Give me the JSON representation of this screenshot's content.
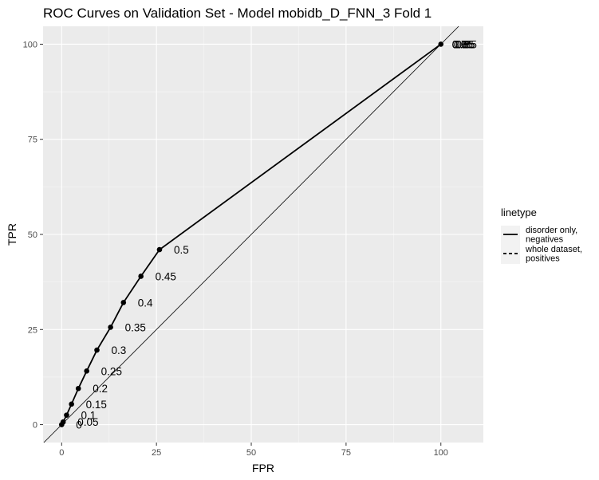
{
  "chart_data": {
    "type": "line",
    "title": "ROC Curves on Validation Set - Model mobidb_D_FNN_3 Fold 1",
    "xlabel": "FPR",
    "ylabel": "TPR",
    "xlim": [
      -4.9,
      111.2
    ],
    "ylim": [
      -4.7,
      104.7
    ],
    "x_ticks": [
      0,
      25,
      50,
      75,
      100
    ],
    "y_ticks": [
      0,
      25,
      50,
      75,
      100
    ],
    "grid": true,
    "legend": {
      "title": "linetype",
      "position": "right",
      "entries": [
        {
          "label_lines": [
            "disorder only,",
            "negatives"
          ],
          "linestyle": "solid"
        },
        {
          "label_lines": [
            "whole dataset,",
            "positives"
          ],
          "linestyle": "dashed"
        }
      ]
    },
    "reference_line": {
      "slope": 1,
      "intercept": 0
    },
    "series": [
      {
        "linestyle": "solid",
        "points": [
          {
            "x": 100,
            "y": 100,
            "label": "0.95"
          },
          {
            "x": 25.8,
            "y": 46,
            "label": "0.5"
          },
          {
            "x": 20.9,
            "y": 39,
            "label": "0.45"
          },
          {
            "x": 16.3,
            "y": 32.1,
            "label": "0.4"
          },
          {
            "x": 12.9,
            "y": 25.6,
            "label": "0.35"
          },
          {
            "x": 9.3,
            "y": 19.6,
            "label": "0.3"
          },
          {
            "x": 6.6,
            "y": 14.1,
            "label": "0.25"
          },
          {
            "x": 4.4,
            "y": 9.5,
            "label": "0.2"
          },
          {
            "x": 2.6,
            "y": 5.4,
            "label": "0.15"
          },
          {
            "x": 1.3,
            "y": 2.5,
            "label": "0.1"
          },
          {
            "x": 0.4,
            "y": 0.7,
            "label": "0.05"
          },
          {
            "x": 0,
            "y": 0,
            "label": "0"
          }
        ]
      }
    ],
    "overlapping_labels_at_100": [
      "0.6",
      "0.65",
      "0.7",
      "0.75",
      "0.8",
      "0.85",
      "0.9",
      "0.95"
    ]
  }
}
